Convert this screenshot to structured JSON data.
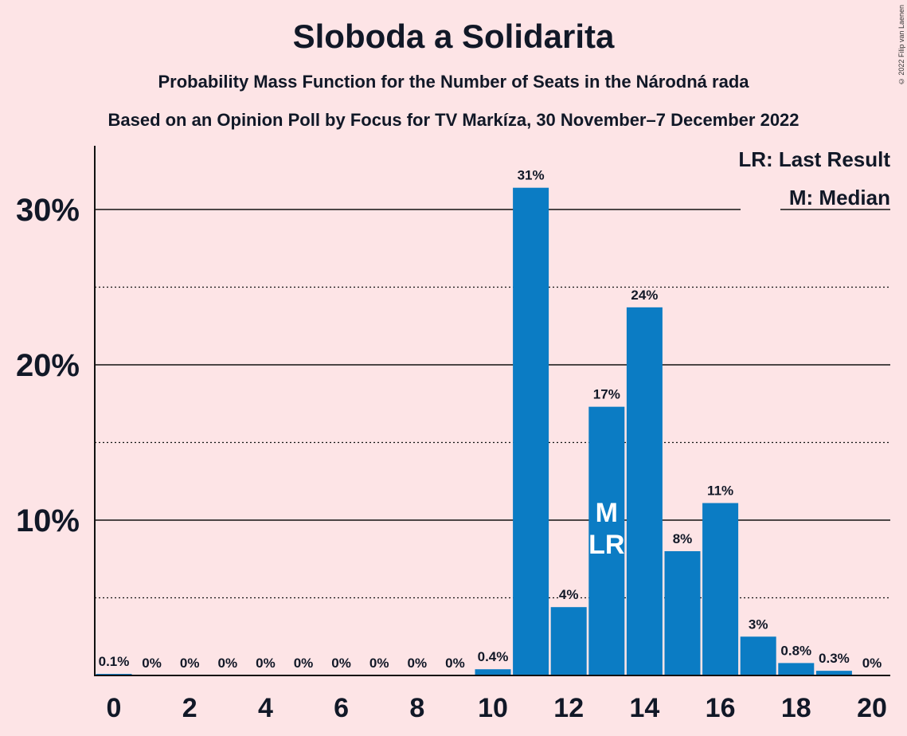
{
  "title": "Sloboda a Solidarita",
  "subtitle": "Probability Mass Function for the Number of Seats in the Národná rada",
  "subtitle2": "Based on an Opinion Poll by Focus for TV Markíza, 30 November–7 December 2022",
  "copyright": "© 2022 Filip van Laenen",
  "legend": {
    "last_result": "LR: Last Result",
    "median": "M: Median"
  },
  "colors": {
    "background": "#fde4e6",
    "bar": "#0b7cc4",
    "text": "#111827"
  },
  "chart_data": {
    "type": "bar",
    "x": [
      0,
      1,
      2,
      3,
      4,
      5,
      6,
      7,
      8,
      9,
      10,
      11,
      12,
      13,
      14,
      15,
      16,
      17,
      18,
      19,
      20
    ],
    "values": [
      0.1,
      0,
      0,
      0,
      0,
      0,
      0,
      0,
      0,
      0,
      0.4,
      31.4,
      4.4,
      17.3,
      23.7,
      8.0,
      11.1,
      2.5,
      0.8,
      0.3,
      0
    ],
    "labels": [
      "0.1%",
      "0%",
      "0%",
      "0%",
      "0%",
      "0%",
      "0%",
      "0%",
      "0%",
      "0%",
      "0.4%",
      "31%",
      "4%",
      "17%",
      "24%",
      "8%",
      "11%",
      "3%",
      "0.8%",
      "0.3%",
      "0%"
    ],
    "x_ticks": [
      "0",
      "2",
      "4",
      "6",
      "8",
      "10",
      "12",
      "14",
      "16",
      "18",
      "20"
    ],
    "y_ticks": [
      {
        "value": 10,
        "label": "10%"
      },
      {
        "value": 20,
        "label": "20%"
      },
      {
        "value": 30,
        "label": "30%"
      }
    ],
    "minor_gridlines": [
      5,
      15,
      25
    ],
    "ylim": [
      0,
      34
    ],
    "median": 13,
    "last_result": 13,
    "median_marker": "M",
    "last_result_marker": "LR",
    "legend_position": "top-right"
  }
}
